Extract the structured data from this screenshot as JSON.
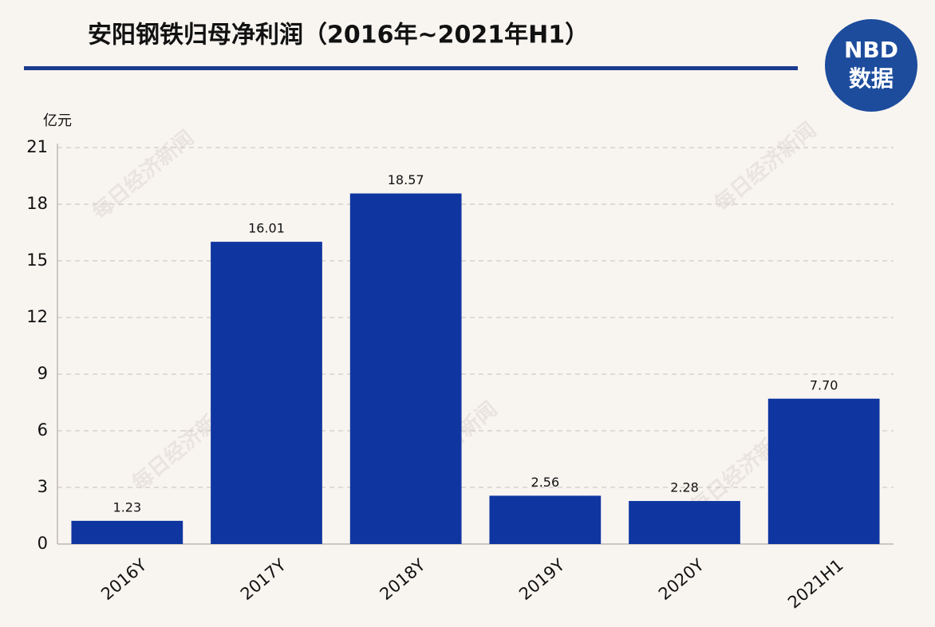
{
  "chart_data": {
    "type": "bar",
    "title": "安阳钢铁归母净利润（2016年~2021年H1）",
    "y_unit": "亿元",
    "logo": {
      "line1": "NBD",
      "line2": "数据"
    },
    "watermark": "每日经济新闻",
    "categories": [
      "2016Y",
      "2017Y",
      "2018Y",
      "2019Y",
      "2020Y",
      "2021H1"
    ],
    "values": [
      1.23,
      16.01,
      18.57,
      2.56,
      2.28,
      7.7
    ],
    "value_labels": [
      "1.23",
      "16.01",
      "18.57",
      "2.56",
      "2.28",
      "7.70"
    ],
    "color": "#0f36a0",
    "ylim": [
      0,
      21
    ],
    "yticks": [
      0,
      3,
      6,
      9,
      12,
      15,
      18,
      21
    ],
    "grid": true
  }
}
